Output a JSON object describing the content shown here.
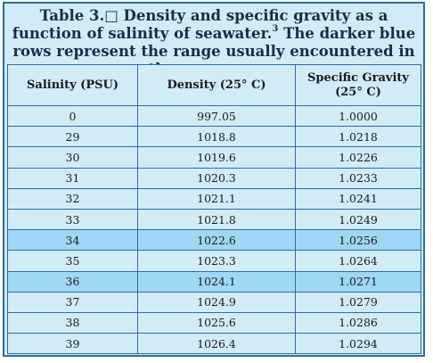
{
  "caption": {
    "text": "Table 3.□ Density and specific gravity as a function of salinity of seawater.",
    "superscript": "3",
    "text_after": " The darker blue rows represent the range usually encountered in the open ocean."
  },
  "table": {
    "headers": [
      "Salinity (PSU)",
      "Density (25° C)",
      "Specific Gravity (25° C)"
    ],
    "rows": [
      {
        "salinity": "0",
        "density": "997.05",
        "sg": "1.0000",
        "highlight": false
      },
      {
        "salinity": "29",
        "density": "1018.8",
        "sg": "1.0218",
        "highlight": false
      },
      {
        "salinity": "30",
        "density": "1019.6",
        "sg": "1.0226",
        "highlight": false
      },
      {
        "salinity": "31",
        "density": "1020.3",
        "sg": "1.0233",
        "highlight": false
      },
      {
        "salinity": "32",
        "density": "1021.1",
        "sg": "1.0241",
        "highlight": false
      },
      {
        "salinity": "33",
        "density": "1021.8",
        "sg": "1.0249",
        "highlight": false
      },
      {
        "salinity": "34",
        "density": "1022.6",
        "sg": "1.0256",
        "highlight": true
      },
      {
        "salinity": "35",
        "density": "1023.3",
        "sg": "1.0264",
        "highlight": false
      },
      {
        "salinity": "36",
        "density": "1024.1",
        "sg": "1.0271",
        "highlight": true
      },
      {
        "salinity": "37",
        "density": "1024.9",
        "sg": "1.0279",
        "highlight": false
      },
      {
        "salinity": "38",
        "density": "1025.6",
        "sg": "1.0286",
        "highlight": false
      },
      {
        "salinity": "39",
        "density": "1026.4",
        "sg": "1.0294",
        "highlight": false
      }
    ]
  },
  "colors": {
    "border": "#2a6da3",
    "row_light": "#d2ecf7",
    "row_dark": "#9fd8f4"
  }
}
